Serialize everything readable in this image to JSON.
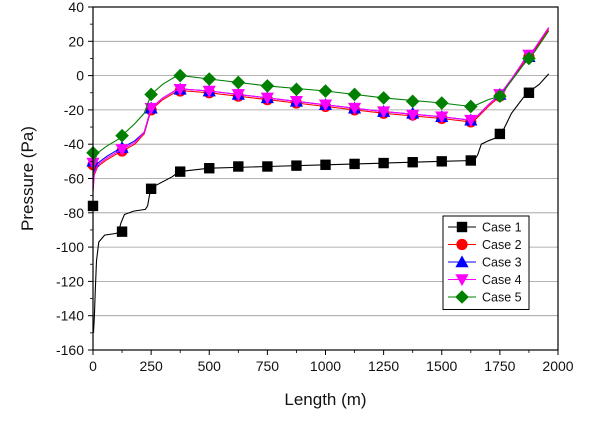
{
  "chart_data": {
    "type": "line",
    "title": "",
    "xlabel": "Length (m)",
    "ylabel": "Pressure (Pa)",
    "xlim": [
      0,
      2000
    ],
    "ylim": [
      -160,
      40
    ],
    "xticks": [
      0,
      250,
      500,
      750,
      1000,
      1250,
      1500,
      1750,
      2000
    ],
    "yticks": [
      -160,
      -140,
      -120,
      -100,
      -80,
      -60,
      -40,
      -20,
      0,
      20,
      40
    ],
    "grid": true,
    "legend_position": "lower-right",
    "series": [
      {
        "name": "Case 1",
        "color": "#000000",
        "marker": "square",
        "markers": [
          [
            0,
            -76
          ],
          [
            125,
            -91
          ],
          [
            250,
            -66
          ],
          [
            375,
            -56
          ],
          [
            500,
            -54
          ],
          [
            625,
            -53
          ],
          [
            750,
            -53
          ],
          [
            875,
            -52.5
          ],
          [
            1000,
            -52
          ],
          [
            1125,
            -51.5
          ],
          [
            1250,
            -51
          ],
          [
            1375,
            -50.5
          ],
          [
            1500,
            -50
          ],
          [
            1625,
            -49.5
          ],
          [
            1750,
            -34
          ],
          [
            1875,
            -10
          ]
        ],
        "curve": [
          [
            2,
            -150
          ],
          [
            6,
            -140
          ],
          [
            10,
            -125
          ],
          [
            15,
            -108
          ],
          [
            25,
            -97
          ],
          [
            50,
            -93
          ],
          [
            100,
            -92
          ],
          [
            110,
            -91
          ],
          [
            120,
            -86
          ],
          [
            135,
            -81
          ],
          [
            175,
            -79
          ],
          [
            225,
            -78
          ],
          [
            235,
            -76
          ],
          [
            245,
            -68
          ],
          [
            270,
            -64
          ],
          [
            340,
            -59
          ],
          [
            360,
            -57
          ],
          [
            400,
            -55.5
          ],
          [
            500,
            -54
          ],
          [
            750,
            -53
          ],
          [
            1000,
            -52
          ],
          [
            1250,
            -51
          ],
          [
            1500,
            -50
          ],
          [
            1640,
            -49.5
          ],
          [
            1655,
            -46
          ],
          [
            1670,
            -40
          ],
          [
            1700,
            -38
          ],
          [
            1740,
            -36
          ],
          [
            1760,
            -33
          ],
          [
            1800,
            -22
          ],
          [
            1850,
            -13
          ],
          [
            1880,
            -9
          ],
          [
            1920,
            -5
          ],
          [
            1960,
            1
          ]
        ]
      },
      {
        "name": "Case 2",
        "color": "#ff0000",
        "marker": "circle",
        "markers": [
          [
            0,
            -52
          ],
          [
            125,
            -44
          ],
          [
            250,
            -20
          ],
          [
            375,
            -9
          ],
          [
            500,
            -10
          ],
          [
            625,
            -12
          ],
          [
            750,
            -14
          ],
          [
            875,
            -16
          ],
          [
            1000,
            -18
          ],
          [
            1125,
            -20
          ],
          [
            1250,
            -22
          ],
          [
            1375,
            -23
          ],
          [
            1500,
            -25
          ],
          [
            1625,
            -27
          ],
          [
            1750,
            -12
          ],
          [
            1875,
            11
          ]
        ],
        "curve": [
          [
            0,
            -68
          ],
          [
            5,
            -58
          ],
          [
            20,
            -53
          ],
          [
            60,
            -49
          ],
          [
            110,
            -45
          ],
          [
            140,
            -43
          ],
          [
            180,
            -40
          ],
          [
            220,
            -34
          ],
          [
            250,
            -20
          ],
          [
            300,
            -14
          ],
          [
            350,
            -10
          ],
          [
            400,
            -9
          ],
          [
            500,
            -10
          ],
          [
            750,
            -14
          ],
          [
            1000,
            -18
          ],
          [
            1250,
            -22
          ],
          [
            1500,
            -25
          ],
          [
            1625,
            -27
          ],
          [
            1650,
            -25
          ],
          [
            1700,
            -18
          ],
          [
            1750,
            -12
          ],
          [
            1800,
            -3
          ],
          [
            1850,
            7
          ],
          [
            1900,
            15
          ],
          [
            1960,
            27
          ]
        ]
      },
      {
        "name": "Case 3",
        "color": "#0000ff",
        "marker": "triangle",
        "markers": [
          [
            0,
            -50
          ],
          [
            125,
            -42
          ],
          [
            250,
            -19
          ],
          [
            375,
            -8
          ],
          [
            500,
            -9
          ],
          [
            625,
            -11
          ],
          [
            750,
            -13
          ],
          [
            875,
            -15
          ],
          [
            1000,
            -17
          ],
          [
            1125,
            -19
          ],
          [
            1250,
            -21
          ],
          [
            1375,
            -22
          ],
          [
            1500,
            -24
          ],
          [
            1625,
            -26
          ],
          [
            1750,
            -11
          ],
          [
            1875,
            11
          ]
        ],
        "curve": [
          [
            0,
            -66
          ],
          [
            5,
            -56
          ],
          [
            20,
            -51
          ],
          [
            60,
            -47
          ],
          [
            110,
            -43
          ],
          [
            140,
            -41
          ],
          [
            180,
            -38
          ],
          [
            220,
            -33
          ],
          [
            250,
            -19
          ],
          [
            300,
            -13
          ],
          [
            350,
            -9
          ],
          [
            400,
            -8
          ],
          [
            500,
            -9
          ],
          [
            750,
            -13
          ],
          [
            1000,
            -17
          ],
          [
            1250,
            -21
          ],
          [
            1500,
            -24
          ],
          [
            1625,
            -26
          ],
          [
            1650,
            -24
          ],
          [
            1700,
            -17
          ],
          [
            1750,
            -11
          ],
          [
            1800,
            -2
          ],
          [
            1850,
            8
          ],
          [
            1900,
            16
          ],
          [
            1960,
            28
          ]
        ]
      },
      {
        "name": "Case 4",
        "color": "#ff00ff",
        "marker": "inverted-triangle",
        "markers": [
          [
            0,
            -51
          ],
          [
            125,
            -43
          ],
          [
            250,
            -19
          ],
          [
            375,
            -8
          ],
          [
            500,
            -9
          ],
          [
            625,
            -11
          ],
          [
            750,
            -13
          ],
          [
            875,
            -15
          ],
          [
            1000,
            -17
          ],
          [
            1125,
            -19
          ],
          [
            1250,
            -21
          ],
          [
            1375,
            -23
          ],
          [
            1500,
            -24
          ],
          [
            1625,
            -26
          ],
          [
            1750,
            -11
          ],
          [
            1875,
            12
          ]
        ],
        "curve": [
          [
            0,
            -67
          ],
          [
            5,
            -57
          ],
          [
            20,
            -52
          ],
          [
            60,
            -48
          ],
          [
            110,
            -44
          ],
          [
            140,
            -42
          ],
          [
            180,
            -39
          ],
          [
            220,
            -33
          ],
          [
            250,
            -19
          ],
          [
            300,
            -13
          ],
          [
            350,
            -9
          ],
          [
            400,
            -8
          ],
          [
            500,
            -9
          ],
          [
            750,
            -13
          ],
          [
            1000,
            -17
          ],
          [
            1250,
            -21
          ],
          [
            1500,
            -24
          ],
          [
            1625,
            -26
          ],
          [
            1650,
            -24
          ],
          [
            1700,
            -17
          ],
          [
            1750,
            -11
          ],
          [
            1800,
            -2
          ],
          [
            1850,
            8
          ],
          [
            1900,
            16
          ],
          [
            1960,
            28
          ]
        ]
      },
      {
        "name": "Case 5",
        "color": "#008000",
        "marker": "diamond",
        "markers": [
          [
            0,
            -45
          ],
          [
            125,
            -35
          ],
          [
            250,
            -11
          ],
          [
            375,
            0
          ],
          [
            500,
            -2
          ],
          [
            625,
            -4
          ],
          [
            750,
            -6
          ],
          [
            875,
            -8
          ],
          [
            1000,
            -9
          ],
          [
            1125,
            -11
          ],
          [
            1250,
            -13
          ],
          [
            1375,
            -15
          ],
          [
            1500,
            -16
          ],
          [
            1625,
            -18
          ],
          [
            1750,
            -12
          ],
          [
            1875,
            10
          ]
        ],
        "curve": [
          [
            0,
            -60
          ],
          [
            5,
            -50
          ],
          [
            20,
            -45
          ],
          [
            60,
            -41
          ],
          [
            110,
            -37
          ],
          [
            140,
            -33
          ],
          [
            180,
            -28
          ],
          [
            220,
            -22
          ],
          [
            250,
            -11
          ],
          [
            300,
            -5
          ],
          [
            350,
            -1
          ],
          [
            380,
            0
          ],
          [
            500,
            -2
          ],
          [
            750,
            -6
          ],
          [
            1000,
            -9
          ],
          [
            1250,
            -13
          ],
          [
            1500,
            -16
          ],
          [
            1625,
            -18
          ],
          [
            1650,
            -17
          ],
          [
            1700,
            -14
          ],
          [
            1750,
            -12
          ],
          [
            1800,
            -3
          ],
          [
            1850,
            6
          ],
          [
            1900,
            14
          ],
          [
            1960,
            26
          ]
        ]
      }
    ]
  }
}
